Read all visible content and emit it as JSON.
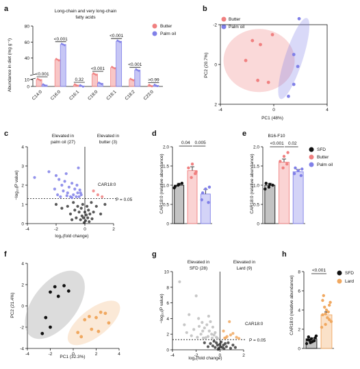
{
  "panels": {
    "a": {
      "letter": "a",
      "title_l1": "Long-chain and very long-chain",
      "title_l2": "fatty acids",
      "ylabel": "Abundance in diet (mg g⁻¹)",
      "legend": [
        "Butter",
        "Palm oil"
      ]
    },
    "b": {
      "letter": "b",
      "xlabel": "PC1 (48%)",
      "ylabel": "PC2 (20.7%)",
      "legend": [
        "Butter",
        "Palm oil"
      ]
    },
    "c": {
      "letter": "c",
      "xlabel": "log₂(fold change)",
      "ylabel": "−log₁₀(P value)",
      "left_text_l1": "Elevated in",
      "left_text_l2": "palm oil (27)",
      "right_text_l1": "Elevated in",
      "right_text_l2": "butter (3)",
      "label": "CAR18:0",
      "threshold_label": "P = 0.05"
    },
    "d": {
      "letter": "d",
      "ylabel": "CAR18:0 (relative abundance)"
    },
    "e": {
      "letter": "e",
      "subtitle": "B16-F10",
      "ylabel": "CAR18:0 (relative abundance)",
      "legend": [
        "SFD",
        "Butter",
        "Palm oil"
      ]
    },
    "f": {
      "letter": "f",
      "xlabel": "PC1 (32.3%)",
      "ylabel": "PC2 (21.4%)"
    },
    "g": {
      "letter": "g",
      "xlabel": "log₂(fold change)",
      "ylabel": "−log₁₀(P value)",
      "left_text_l1": "Elevated in",
      "left_text_l2": "SFD (28)",
      "right_text_l1": "Elevated in",
      "right_text_l2": "Lard (9)",
      "label": "CAR18:0",
      "threshold_label": "P = 0.05"
    },
    "h": {
      "letter": "h",
      "ylabel": "CAR18:0 (relative abundance)",
      "legend": [
        "SFD",
        "Lard"
      ]
    }
  },
  "colors": {
    "butter": "#f08080",
    "palm": "#8080e8",
    "sfd": "#111111",
    "lard": "#f0a860",
    "grey": "#9a9a9a"
  },
  "chart_data": [
    {
      "panel": "a",
      "type": "bar",
      "categories": [
        "C14:0",
        "C16:0",
        "C16:1",
        "C18:0",
        "C18:1",
        "C18:2",
        "C23:0"
      ],
      "series": [
        {
          "name": "Butter",
          "values": [
            10,
            38,
            2,
            20,
            28,
            10,
            1.2
          ]
        },
        {
          "name": "Palm oil",
          "values": [
            2,
            57,
            0.7,
            4.5,
            61,
            25,
            1.5
          ]
        }
      ],
      "pvalues": [
        "<0.001",
        "<0.001",
        "0.32",
        "<0.001",
        "<0.001",
        "<0.001",
        ">0.99"
      ],
      "ylim": [
        0,
        80
      ],
      "yticks": [
        "0",
        "10",
        "40",
        "60",
        "80"
      ]
    },
    {
      "panel": "b",
      "type": "scatter",
      "xlim": [
        -4,
        4
      ],
      "ylim": [
        -2,
        2
      ],
      "xticks": [
        "-4",
        "0",
        "4"
      ],
      "yticks": [
        "-2",
        "0",
        "2"
      ],
      "series": [
        {
          "name": "Butter",
          "points": [
            [
              -2.1,
              -0.2
            ],
            [
              -1.6,
              -1.2
            ],
            [
              -1.0,
              -1.0
            ],
            [
              -0.1,
              -1.5
            ],
            [
              -1.2,
              0.8
            ],
            [
              -0.4,
              0.9
            ]
          ]
        },
        {
          "name": "Palm oil",
          "points": [
            [
              1.9,
              -2.3
            ],
            [
              1.5,
              -0.5
            ],
            [
              1.1,
              1.6
            ],
            [
              1.5,
              1.0
            ],
            [
              1.8,
              0.1
            ]
          ]
        }
      ]
    },
    {
      "panel": "c",
      "type": "scatter",
      "xlim": [
        -4,
        2
      ],
      "ylim": [
        0,
        4
      ],
      "xticks": [
        "-4",
        "-2",
        "0",
        "2"
      ],
      "yticks": [
        "0",
        "1",
        "2",
        "3",
        "4"
      ],
      "threshold": 1.3,
      "series": [
        {
          "name": "palm oil",
          "points": [
            [
              -3.5,
              2.4
            ],
            [
              -2.5,
              2.7
            ],
            [
              -2.1,
              1.8
            ],
            [
              -1.9,
              1.5
            ],
            [
              -1.8,
              2.3
            ],
            [
              -1.6,
              2.0
            ],
            [
              -1.5,
              1.7
            ],
            [
              -1.4,
              2.2
            ],
            [
              -1.3,
              2.6
            ],
            [
              -1.2,
              1.6
            ],
            [
              -1.1,
              1.9
            ],
            [
              -1.0,
              1.4
            ],
            [
              -0.9,
              2.1
            ],
            [
              -0.8,
              1.5
            ],
            [
              -0.7,
              1.8
            ],
            [
              -0.6,
              1.4
            ],
            [
              -0.5,
              1.6
            ],
            [
              -0.45,
              2.9
            ],
            [
              -0.4,
              1.4
            ],
            [
              -0.3,
              1.6
            ],
            [
              -0.25,
              1.5
            ],
            [
              -1.7,
              1.4
            ],
            [
              -2.0,
              2.5
            ],
            [
              -0.9,
              1.35
            ],
            [
              -0.55,
              2.0
            ],
            [
              -1.25,
              1.45
            ],
            [
              -0.35,
              1.75
            ]
          ]
        },
        {
          "name": "butter",
          "points": [
            [
              0.6,
              1.7
            ],
            [
              0.9,
              1.5
            ],
            [
              1.2,
              1.4
            ]
          ]
        },
        {
          "name": "ns",
          "points": [
            [
              -2.0,
              1.0
            ],
            [
              -1.6,
              0.8
            ],
            [
              -1.2,
              0.9
            ],
            [
              -1.0,
              0.5
            ],
            [
              -0.8,
              1.1
            ],
            [
              -0.7,
              0.7
            ],
            [
              -0.6,
              0.3
            ],
            [
              -0.5,
              0.9
            ],
            [
              -0.4,
              0.6
            ],
            [
              -0.3,
              0.2
            ],
            [
              -0.25,
              0.8
            ],
            [
              -0.2,
              0.4
            ],
            [
              -0.15,
              1.0
            ],
            [
              -0.1,
              0.3
            ],
            [
              0.0,
              0.6
            ],
            [
              0.05,
              0.15
            ],
            [
              0.1,
              0.45
            ],
            [
              0.15,
              0.9
            ],
            [
              0.2,
              0.3
            ],
            [
              0.25,
              0.7
            ],
            [
              0.3,
              0.1
            ],
            [
              0.35,
              0.5
            ],
            [
              0.45,
              1.1
            ],
            [
              0.5,
              0.25
            ],
            [
              0.6,
              0.6
            ],
            [
              0.8,
              0.9
            ],
            [
              1.1,
              0.5
            ],
            [
              1.4,
              1.0
            ],
            [
              -0.9,
              0.2
            ],
            [
              -0.05,
              0.05
            ]
          ]
        }
      ]
    },
    {
      "panel": "d",
      "type": "bar",
      "categories": [
        "SFD",
        "Butter",
        "Palm oil"
      ],
      "values": [
        1.0,
        1.38,
        0.77
      ],
      "errors": [
        0.05,
        0.1,
        0.12
      ],
      "points": [
        [
          0.93,
          1.0,
          1.05,
          0.97,
          1.02
        ],
        [
          1.2,
          1.3,
          1.45,
          1.55,
          1.35
        ],
        [
          0.55,
          0.62,
          0.9,
          0.95,
          0.8
        ]
      ],
      "pvalues": [
        "0.04",
        "0.005"
      ],
      "ylim": [
        0,
        2
      ],
      "yticks": [
        "0",
        "0.5",
        "1.0",
        "1.5",
        "2.0"
      ]
    },
    {
      "panel": "e",
      "type": "bar",
      "categories": [
        "SFD",
        "Butter",
        "Palm oil"
      ],
      "values": [
        1.0,
        1.6,
        1.35
      ],
      "errors": [
        0.05,
        0.08,
        0.06
      ],
      "points": [
        [
          0.9,
          0.95,
          1.0,
          1.05,
          1.02
        ],
        [
          1.45,
          1.55,
          1.62,
          1.75,
          1.85
        ],
        [
          1.25,
          1.3,
          1.38,
          1.42,
          1.45
        ]
      ],
      "pvalues": [
        "<0.001",
        "0.02"
      ],
      "ylim": [
        0,
        2
      ],
      "yticks": [
        "0",
        "0.5",
        "1.0",
        "1.5",
        "2.0"
      ]
    },
    {
      "panel": "f",
      "type": "scatter",
      "xlim": [
        -4,
        4
      ],
      "ylim": [
        -4,
        4
      ],
      "xticks": [
        "-4",
        "-2",
        "0",
        "2",
        "4"
      ],
      "yticks": [
        "-4",
        "-2",
        "0",
        "2",
        "4"
      ],
      "series": [
        {
          "name": "SFD",
          "points": [
            [
              -1.6,
              1.8
            ],
            [
              -0.8,
              1.9
            ],
            [
              -2.0,
              1.3
            ],
            [
              -1.3,
              0.9
            ],
            [
              -0.4,
              1.4
            ],
            [
              -2.4,
              -1.1
            ],
            [
              -2.0,
              -2.0
            ],
            [
              -2.7,
              -2.6
            ]
          ]
        },
        {
          "name": "Lard",
          "points": [
            [
              1.0,
              -1.3
            ],
            [
              1.4,
              -1.0
            ],
            [
              2.0,
              -1.1
            ],
            [
              2.4,
              -0.6
            ],
            [
              2.8,
              -0.7
            ],
            [
              1.6,
              -2.2
            ],
            [
              2.2,
              -2.4
            ],
            [
              3.1,
              -1.6
            ],
            [
              0.4,
              -2.5
            ],
            [
              0.7,
              -2.9
            ]
          ]
        }
      ]
    },
    {
      "panel": "g",
      "type": "scatter",
      "xlim": [
        -4,
        2
      ],
      "ylim": [
        0,
        10
      ],
      "xticks": [
        "-4",
        "-2",
        "0",
        "2"
      ],
      "yticks": [
        "0",
        "2",
        "4",
        "6",
        "8",
        "10"
      ],
      "threshold": 1.3,
      "series": [
        {
          "name": "SFD",
          "points": [
            [
              -3.4,
              8.7
            ],
            [
              -2.0,
              6.9
            ],
            [
              -2.6,
              4.5
            ],
            [
              -1.8,
              4.0
            ],
            [
              -1.5,
              3.5
            ],
            [
              -1.3,
              2.8
            ],
            [
              -1.1,
              3.2
            ],
            [
              -0.9,
              2.4
            ],
            [
              -0.7,
              2.0
            ],
            [
              -1.6,
              2.0
            ],
            [
              -2.2,
              2.6
            ],
            [
              -0.5,
              1.9
            ],
            [
              -0.3,
              1.6
            ],
            [
              -1.0,
              1.7
            ],
            [
              -0.8,
              3.6
            ],
            [
              -1.4,
              1.5
            ],
            [
              -0.6,
              2.9
            ],
            [
              -2.4,
              1.8
            ],
            [
              -0.4,
              2.2
            ],
            [
              -1.2,
              1.55
            ],
            [
              -0.95,
              4.3
            ],
            [
              -1.75,
              3.0
            ],
            [
              -0.2,
              1.45
            ],
            [
              -2.8,
              2.2
            ],
            [
              -1.9,
              1.6
            ],
            [
              -0.65,
              1.5
            ],
            [
              -1.45,
              2.4
            ],
            [
              -3.0,
              3.2
            ]
          ]
        },
        {
          "name": "Lard",
          "points": [
            [
              0.8,
              3.6
            ],
            [
              1.1,
              2.1
            ],
            [
              0.6,
              1.7
            ],
            [
              0.4,
              1.5
            ],
            [
              1.4,
              1.6
            ],
            [
              0.9,
              1.9
            ],
            [
              0.3,
              2.4
            ],
            [
              1.6,
              1.45
            ],
            [
              0.5,
              1.55
            ]
          ]
        },
        {
          "name": "ns",
          "points": [
            [
              -0.8,
              0.8
            ],
            [
              -0.6,
              0.5
            ],
            [
              -0.5,
              1.1
            ],
            [
              -0.4,
              0.3
            ],
            [
              -0.3,
              0.9
            ],
            [
              -0.2,
              0.6
            ],
            [
              -0.1,
              0.2
            ],
            [
              0.0,
              0.7
            ],
            [
              0.05,
              0.4
            ],
            [
              0.1,
              1.0
            ],
            [
              0.2,
              0.3
            ],
            [
              0.3,
              0.6
            ],
            [
              0.35,
              0.15
            ],
            [
              0.45,
              0.8
            ],
            [
              0.55,
              0.4
            ],
            [
              0.7,
              0.9
            ],
            [
              0.9,
              0.2
            ],
            [
              1.1,
              0.6
            ],
            [
              1.3,
              0.3
            ],
            [
              -1.0,
              0.4
            ],
            [
              -1.3,
              0.9
            ],
            [
              -0.15,
              0.05
            ]
          ]
        }
      ]
    },
    {
      "panel": "h",
      "type": "bar",
      "categories": [
        "SFD",
        "Lard"
      ],
      "values": [
        1.0,
        3.5
      ],
      "errors": [
        0.1,
        0.3
      ],
      "points": [
        [
          0.5,
          0.6,
          0.8,
          0.9,
          1.0,
          1.1,
          1.2,
          0.7,
          1.3,
          0.85
        ],
        [
          2.5,
          3.0,
          3.5,
          4.0,
          4.8,
          5.5,
          3.2,
          2.8,
          4.3,
          3.8,
          2.2,
          3.6,
          4.5,
          5.0
        ]
      ],
      "pvalues": [
        "<0.001"
      ],
      "ylim": [
        0,
        8
      ],
      "yticks": [
        "0",
        "2",
        "4",
        "6",
        "8"
      ]
    }
  ]
}
